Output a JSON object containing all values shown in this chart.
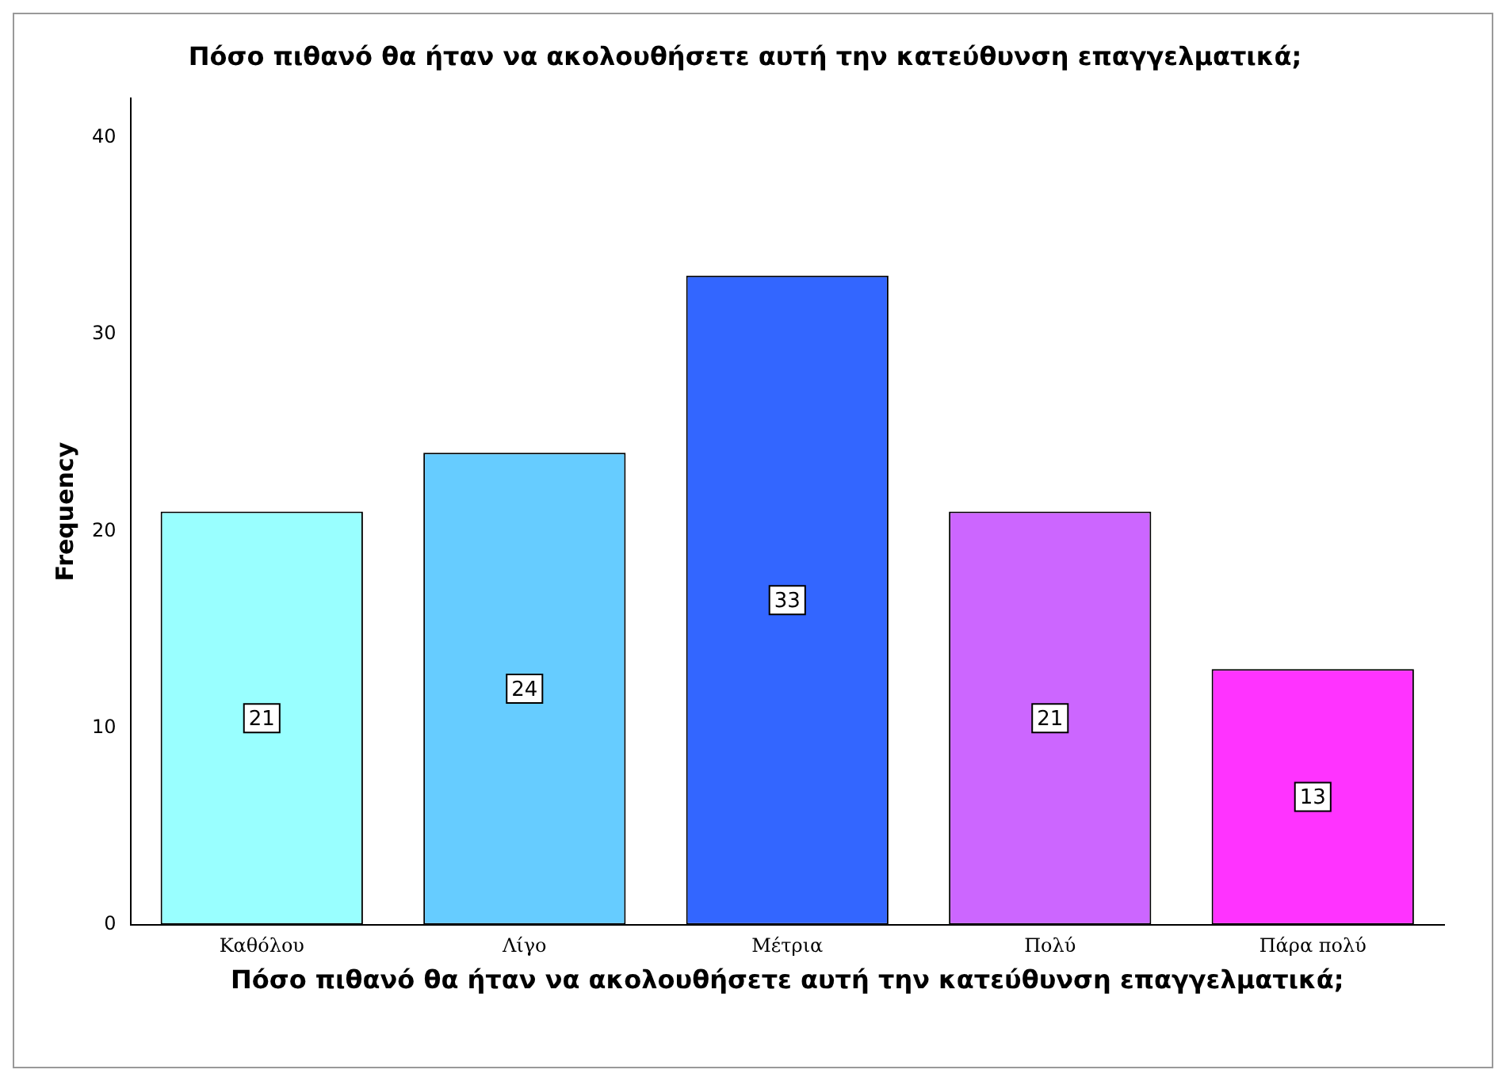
{
  "chart_data": {
    "type": "bar",
    "title": "Πόσο πιθανό θα ήταν να ακολουθήσετε αυτή την κατεύθυνση επαγγελματικά;",
    "xlabel": "Πόσο πιθανό θα ήταν να ακολουθήσετε αυτή την κατεύθυνση επαγγελματικά;",
    "ylabel": "Frequency",
    "categories": [
      "Καθόλου",
      "Λίγο",
      "Μέτρια",
      "Πολύ",
      "Πάρα πολύ"
    ],
    "values": [
      21,
      24,
      33,
      21,
      13
    ],
    "colors": [
      "#99ffff",
      "#66ccff",
      "#3366ff",
      "#cc66ff",
      "#ff33ff"
    ],
    "ylim": [
      0,
      42
    ],
    "yticks": [
      0,
      10,
      20,
      30,
      40
    ],
    "grid": false,
    "legend": false,
    "data_labels": true
  }
}
